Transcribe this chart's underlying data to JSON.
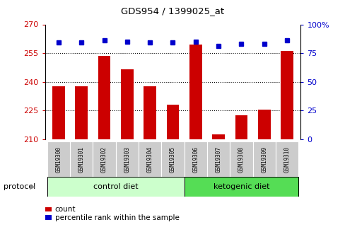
{
  "title": "GDS954 / 1399025_at",
  "samples": [
    "GSM19300",
    "GSM19301",
    "GSM19302",
    "GSM19303",
    "GSM19304",
    "GSM19305",
    "GSM19306",
    "GSM19307",
    "GSM19308",
    "GSM19309",
    "GSM19310"
  ],
  "counts": [
    237.5,
    237.5,
    253.5,
    246.5,
    237.5,
    228.0,
    259.5,
    212.5,
    222.5,
    225.5,
    256.0
  ],
  "percentiles": [
    84,
    84,
    86,
    85,
    84,
    84,
    85,
    81,
    83,
    83,
    86
  ],
  "ylim_left": [
    210,
    270
  ],
  "ylim_right": [
    0,
    100
  ],
  "yticks_left": [
    210,
    225,
    240,
    255,
    270
  ],
  "yticks_right": [
    0,
    25,
    50,
    75,
    100
  ],
  "ytick_labels_right": [
    "0",
    "25",
    "50",
    "75",
    "100%"
  ],
  "bar_color": "#cc0000",
  "dot_color": "#0000cc",
  "control_diet_indices": [
    0,
    1,
    2,
    3,
    4,
    5
  ],
  "ketogenic_diet_indices": [
    6,
    7,
    8,
    9,
    10
  ],
  "control_diet_label": "control diet",
  "ketogenic_diet_label": "ketogenic diet",
  "protocol_label": "protocol",
  "legend_count": "count",
  "legend_percentile": "percentile rank within the sample",
  "background_color": "#ffffff",
  "label_color_left": "#cc0000",
  "label_color_right": "#0000cc",
  "control_bg": "#ccffcc",
  "ketogenic_bg": "#55dd55",
  "sample_bg": "#cccccc"
}
